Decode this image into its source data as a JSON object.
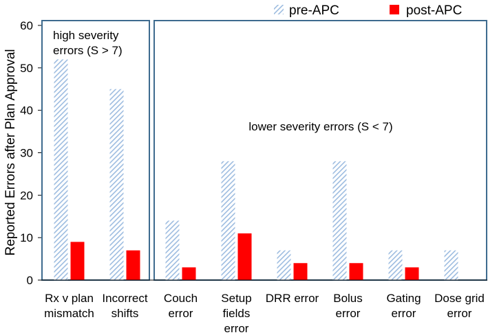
{
  "chart_data": {
    "type": "bar",
    "ylabel": "Reported Errors after Plan Approval",
    "ylim": [
      0,
      60
    ],
    "yticks": [
      0,
      10,
      20,
      30,
      40,
      50,
      60
    ],
    "categories": [
      [
        "Rx v plan",
        "mismatch"
      ],
      [
        "Incorrect",
        "shifts"
      ],
      [
        "Couch",
        "error"
      ],
      [
        "Setup",
        "fields",
        "error"
      ],
      [
        "DRR error"
      ],
      [
        "Bolus",
        "error"
      ],
      [
        "Gating",
        "error"
      ],
      [
        "Dose grid",
        "error"
      ]
    ],
    "series": [
      {
        "name": "pre-APC",
        "values": [
          52,
          45,
          14,
          28,
          7,
          28,
          7,
          7
        ],
        "color": "#a9c4e4",
        "pattern": "diagonal-hatch"
      },
      {
        "name": "post-APC",
        "values": [
          9,
          7,
          3,
          11,
          4,
          4,
          3,
          0
        ],
        "color": "#ff0000",
        "pattern": "solid"
      }
    ],
    "legend_position": "top",
    "grid": false,
    "annotations": {
      "high_severity": [
        "high severity",
        "errors (S > 7)"
      ],
      "lower_severity": "lower severity errors (S < 7)"
    },
    "group_box_color": "#3d6a8e"
  }
}
